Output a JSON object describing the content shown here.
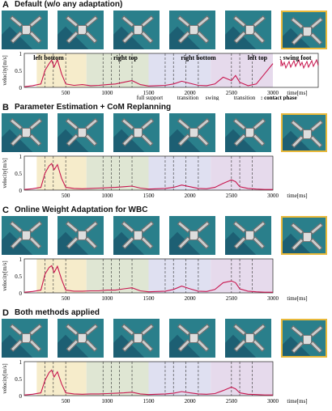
{
  "panels": [
    {
      "label": "A",
      "title": "Default (w/o any adaptation)"
    },
    {
      "label": "B",
      "title": "Parameter Estimation + CoM Replanning"
    },
    {
      "label": "C",
      "title": "Online Weight Adaptation for WBC"
    },
    {
      "label": "D",
      "title": "Both methods applied"
    }
  ],
  "annotations": {
    "leg_labels": [
      "left bottom",
      "right top",
      "right bottom",
      "left top"
    ],
    "swing_foot": ": swing foot",
    "phases": [
      "full support",
      "transition",
      "swing",
      "transition"
    ],
    "contact_phase": ": contact phase"
  },
  "chart_data": [
    {
      "type": "line",
      "xlabel": "time[ms]",
      "ylabel": "velocity[m/s]",
      "xlim": [
        0,
        3000
      ],
      "ylim": [
        0,
        1
      ],
      "xticks": [
        "500",
        "1000",
        "1500",
        "2000",
        "2500",
        "3000"
      ],
      "yticks": [
        "0",
        "0.5",
        "1"
      ],
      "x": [
        0,
        100,
        200,
        250,
        300,
        330,
        360,
        400,
        450,
        500,
        600,
        700,
        800,
        900,
        1000,
        1100,
        1200,
        1300,
        1400,
        1500,
        1600,
        1700,
        1800,
        1900,
        2000,
        2100,
        2200,
        2300,
        2400,
        2500,
        2550,
        2600,
        2700,
        2800,
        2900,
        3000
      ],
      "y": [
        0.02,
        0.05,
        0.1,
        0.5,
        0.7,
        0.8,
        0.6,
        0.82,
        0.4,
        0.1,
        0.06,
        0.08,
        0.05,
        0.06,
        0.08,
        0.1,
        0.15,
        0.2,
        0.08,
        0.04,
        0.05,
        0.06,
        0.1,
        0.18,
        0.12,
        0.06,
        0.05,
        0.1,
        0.3,
        0.2,
        0.35,
        0.15,
        0.05,
        0.1,
        0.4,
        0.7
      ]
    },
    {
      "type": "line",
      "xlabel": "time[ms]",
      "ylabel": "velocity[m/s]",
      "xlim": [
        0,
        3000
      ],
      "ylim": [
        0,
        1
      ],
      "xticks": [
        "500",
        "1000",
        "1500",
        "2000",
        "2500",
        "3000"
      ],
      "yticks": [
        "0",
        "0.5",
        "1"
      ],
      "x": [
        0,
        100,
        200,
        250,
        300,
        330,
        360,
        400,
        450,
        500,
        600,
        700,
        800,
        900,
        1000,
        1100,
        1200,
        1300,
        1400,
        1500,
        1600,
        1700,
        1800,
        1900,
        2000,
        2100,
        2200,
        2300,
        2400,
        2500,
        2550,
        2600,
        2700,
        2800,
        2900,
        3000
      ],
      "y": [
        0.02,
        0.04,
        0.08,
        0.5,
        0.72,
        0.78,
        0.6,
        0.75,
        0.35,
        0.08,
        0.05,
        0.04,
        0.05,
        0.06,
        0.07,
        0.08,
        0.1,
        0.12,
        0.06,
        0.03,
        0.04,
        0.05,
        0.08,
        0.15,
        0.1,
        0.05,
        0.04,
        0.08,
        0.2,
        0.3,
        0.25,
        0.1,
        0.05,
        0.03,
        0.02,
        0.02
      ]
    },
    {
      "type": "line",
      "xlabel": "time[ms]",
      "ylabel": "velocity[m/s]",
      "xlim": [
        0,
        3000
      ],
      "ylim": [
        0,
        1
      ],
      "xticks": [
        "500",
        "1000",
        "1500",
        "2000",
        "2500",
        "3000"
      ],
      "yticks": [
        "0",
        "0.5",
        "1"
      ],
      "x": [
        0,
        100,
        200,
        250,
        300,
        330,
        360,
        400,
        450,
        500,
        600,
        700,
        800,
        900,
        1000,
        1100,
        1200,
        1300,
        1400,
        1500,
        1600,
        1700,
        1800,
        1900,
        2000,
        2100,
        2200,
        2300,
        2400,
        2500,
        2550,
        2600,
        2700,
        2800,
        2900,
        3000
      ],
      "y": [
        0.02,
        0.04,
        0.08,
        0.55,
        0.75,
        0.8,
        0.6,
        0.78,
        0.4,
        0.08,
        0.05,
        0.05,
        0.06,
        0.06,
        0.08,
        0.08,
        0.12,
        0.15,
        0.06,
        0.03,
        0.04,
        0.05,
        0.1,
        0.2,
        0.12,
        0.05,
        0.04,
        0.1,
        0.3,
        0.35,
        0.3,
        0.12,
        0.05,
        0.03,
        0.02,
        0.02
      ]
    },
    {
      "type": "line",
      "xlabel": "time[ms]",
      "ylabel": "velocity[m/s]",
      "xlim": [
        0,
        3000
      ],
      "ylim": [
        0,
        1
      ],
      "xticks": [
        "500",
        "1000",
        "1500",
        "2000",
        "2500",
        "3000"
      ],
      "yticks": [
        "0",
        "0.5",
        "1"
      ],
      "x": [
        0,
        100,
        200,
        250,
        300,
        330,
        360,
        400,
        450,
        500,
        600,
        700,
        800,
        900,
        1000,
        1100,
        1200,
        1300,
        1400,
        1500,
        1600,
        1700,
        1800,
        1900,
        2000,
        2100,
        2200,
        2300,
        2400,
        2500,
        2550,
        2600,
        2700,
        2800,
        2900,
        3000
      ],
      "y": [
        0.02,
        0.04,
        0.08,
        0.45,
        0.68,
        0.75,
        0.55,
        0.7,
        0.35,
        0.08,
        0.05,
        0.04,
        0.05,
        0.05,
        0.06,
        0.07,
        0.08,
        0.1,
        0.05,
        0.03,
        0.04,
        0.05,
        0.07,
        0.12,
        0.08,
        0.05,
        0.04,
        0.06,
        0.15,
        0.25,
        0.2,
        0.08,
        0.04,
        0.03,
        0.02,
        0.02
      ]
    }
  ],
  "colors": {
    "line": "#c8174f",
    "bg_lb": "#f6eccb",
    "bg_rt": "#dfe6d3",
    "bg_rb": "#dfe0f1",
    "bg_lt": "#e6daec",
    "frame_border": "#e9b93a"
  }
}
